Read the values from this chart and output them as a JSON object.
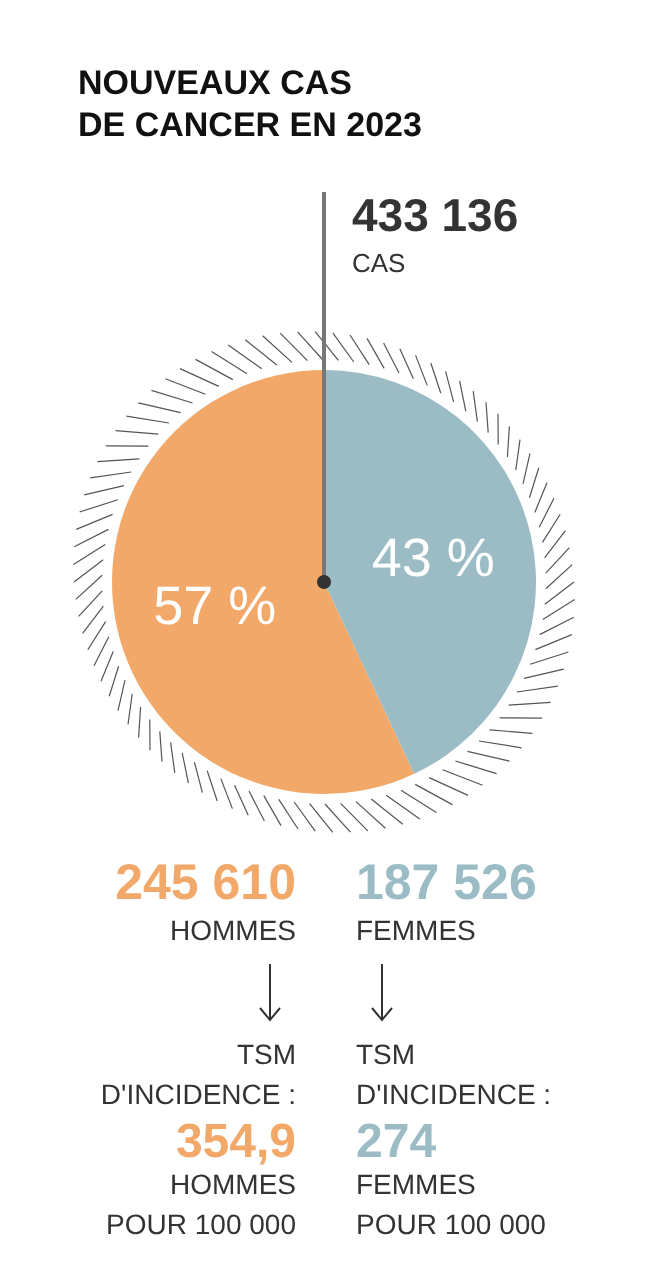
{
  "chart_data": {
    "type": "pie",
    "title": "NOUVEAUX CAS\nDE CANCER EN 2023",
    "categories": [
      null,
      null
    ],
    "values": [
      57,
      43
    ],
    "value_labels": [
      "57 %",
      "43 %"
    ],
    "colors": [
      "#f2a869",
      "#9bbcc5"
    ],
    "annotations": [
      "433 136",
      "CAS",
      "245 610",
      "187 526",
      "TSM",
      "D'INCIDENCE :",
      "354,9",
      "HOMMES",
      "POUR 100 000",
      "TSM",
      "D'INCIDENCE :",
      "274",
      "FEMMES",
      "POUR 100 000",
      "HOMMES",
      "FEMMES"
    ]
  }
}
